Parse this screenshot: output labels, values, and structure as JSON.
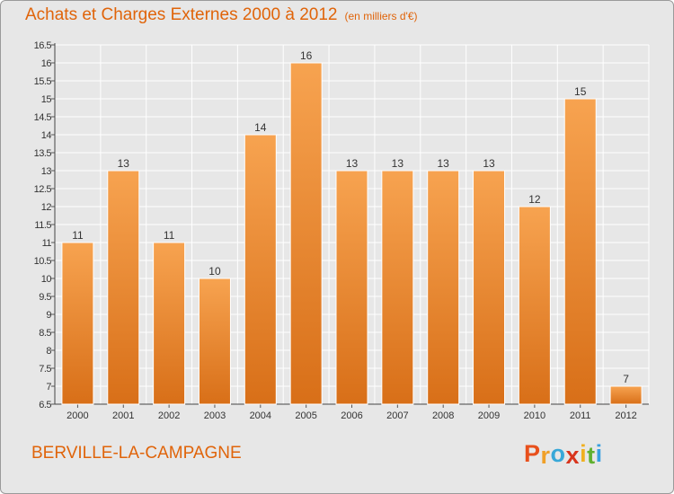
{
  "chart_data": {
    "type": "bar",
    "title": "Achats et Charges Externes 2000 à 2012",
    "subtitle": "(en milliers d'€)",
    "categories": [
      "2000",
      "2001",
      "2002",
      "2003",
      "2004",
      "2005",
      "2006",
      "2007",
      "2008",
      "2009",
      "2010",
      "2011",
      "2012"
    ],
    "values": [
      11,
      13,
      11,
      10,
      14,
      16,
      13,
      13,
      13,
      13,
      12,
      15,
      7
    ],
    "ylim": [
      6.5,
      16.5
    ],
    "yticks": [
      "6.5",
      "7",
      "7.5",
      "8",
      "8.5",
      "9",
      "9.5",
      "10",
      "10.5",
      "11",
      "11.5",
      "12",
      "12.5",
      "13",
      "13.5",
      "14",
      "14.5",
      "15",
      "15.5",
      "16",
      "16.5"
    ],
    "xlabel": "",
    "ylabel": "",
    "grid": true,
    "bar_color_top": "#f7a350",
    "bar_color_bottom": "#d86f18"
  },
  "footer": {
    "commune": "BERVILLE-LA-CAMPAGNE",
    "logo_letters": [
      "P",
      "r",
      "o",
      "x",
      "i",
      "t",
      "i"
    ],
    "logo_colors": [
      "#e8501c",
      "#f0a028",
      "#38a8d8",
      "#d8341c",
      "#f0b020",
      "#60b030",
      "#38a0e0"
    ]
  }
}
